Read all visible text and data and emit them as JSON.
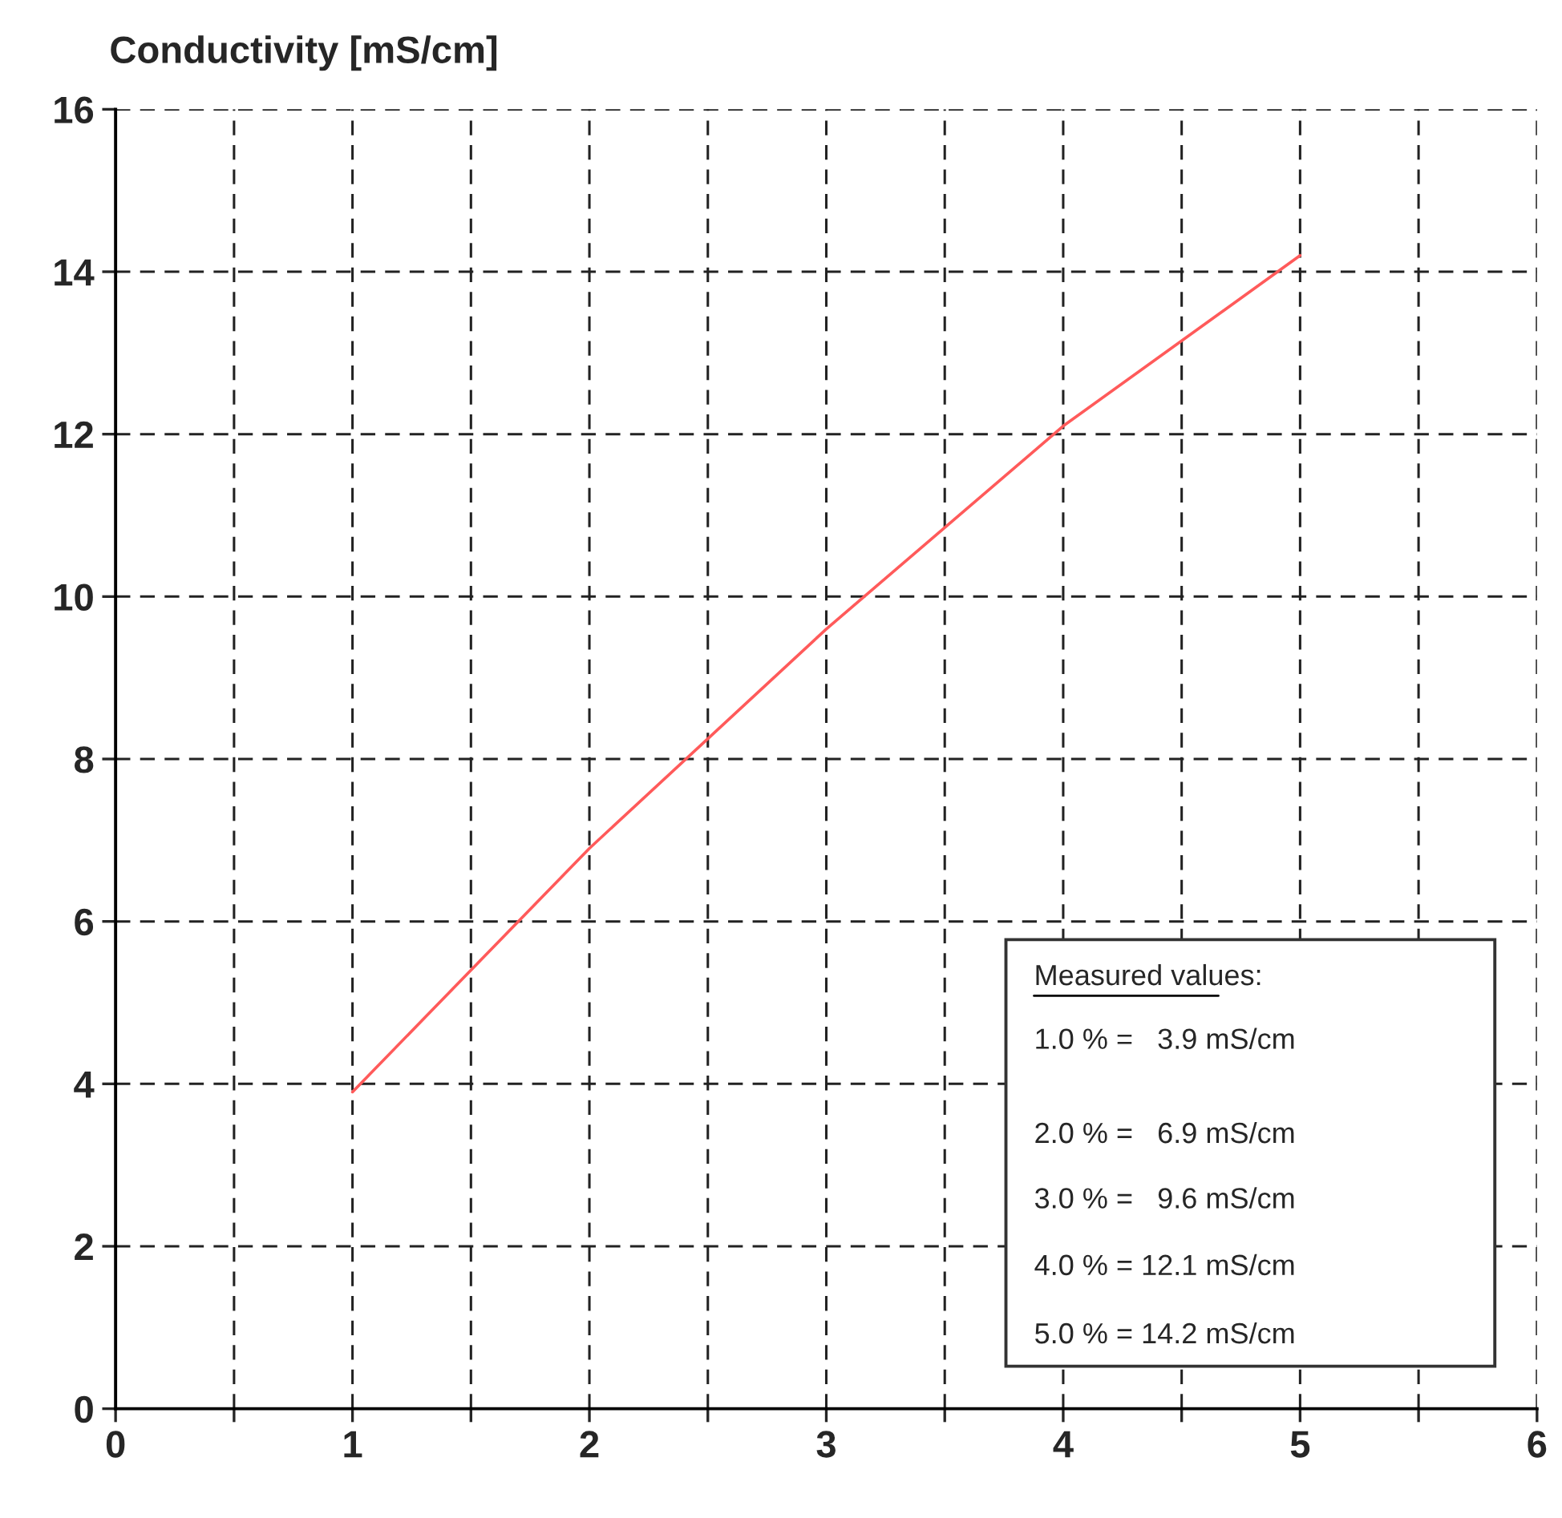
{
  "chart_data": {
    "type": "line",
    "ylabel": "Conductivity [mS/cm]",
    "x": [
      1,
      2,
      3,
      4,
      5
    ],
    "series": [
      {
        "color": "#ff5a5a",
        "values": [
          3.9,
          6.9,
          9.6,
          12.1,
          14.2
        ]
      }
    ],
    "xlim": [
      0,
      6
    ],
    "ylim": [
      0,
      16
    ],
    "xticks": [
      0,
      {
        "value": 0.5,
        "label": null
      },
      1,
      {
        "value": 1.5,
        "label": null
      },
      2,
      {
        "value": 2.5,
        "label": null
      },
      3,
      {
        "value": 3.5,
        "label": null
      },
      4,
      {
        "value": 4.5,
        "label": null
      },
      5,
      {
        "value": 5.5,
        "label": null
      },
      6
    ],
    "yticks": [
      0,
      2,
      4,
      6,
      8,
      10,
      12,
      14,
      16
    ],
    "grid": true,
    "line_style": "solid",
    "marker": "none",
    "annotations": [
      "Measured values:",
      "1.0 % =   3.9 mS/cm",
      "2.0 % =   6.9 mS/cm",
      "3.0 % =   9.6 mS/cm",
      "4.0 % = 12.1 mS/cm",
      "5.0 % = 14.2 mS/cm"
    ]
  }
}
